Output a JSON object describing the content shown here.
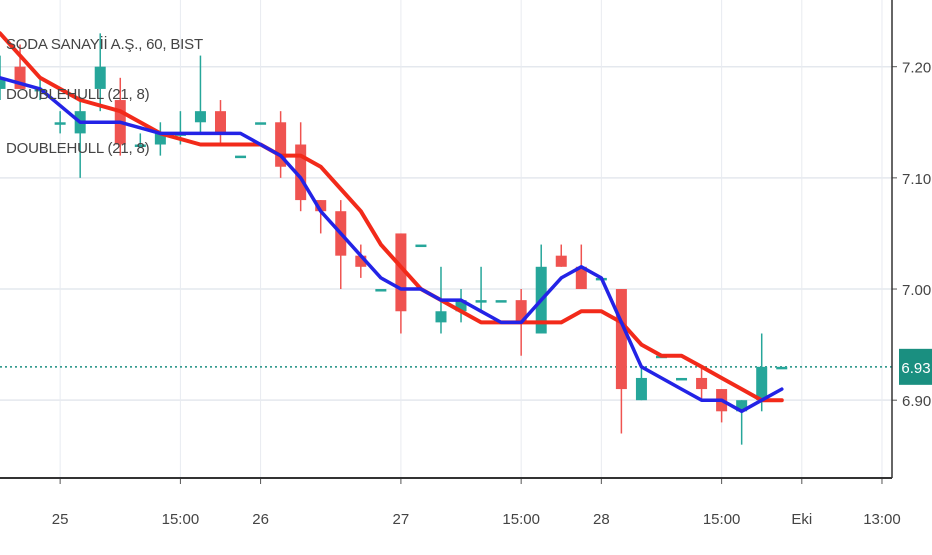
{
  "chart_data": {
    "type": "candlestick",
    "symbol_legend": "SODA SANAYİİ A.Ş., 60, BIST",
    "indicators": [
      {
        "legend": "DOUBLEHULL (21, 8)",
        "color": "#2323e6"
      },
      {
        "legend": "DOUBLEHULL (21, 8)",
        "color": "#f22a1a"
      }
    ],
    "ylim": [
      6.83,
      7.26
    ],
    "y_ticks": [
      "7.20",
      "7.10",
      "7.00",
      "6.90"
    ],
    "y_tick_values": [
      7.2,
      7.1,
      7.0,
      6.9
    ],
    "x_tick_labels": [
      {
        "label": "25",
        "index": 3
      },
      {
        "label": "15:00",
        "index": 9
      },
      {
        "label": "26",
        "index": 13
      },
      {
        "label": "27",
        "index": 20
      },
      {
        "label": "15:00",
        "index": 26
      },
      {
        "label": "28",
        "index": 30
      },
      {
        "label": "15:00",
        "index": 36
      },
      {
        "label": "Eki",
        "index": 40
      },
      {
        "label": "13:00",
        "index": 44
      }
    ],
    "index_range": [
      0,
      44.5
    ],
    "last_price": {
      "label": "6.93",
      "value": 6.93
    },
    "colors": {
      "up": "#26a69a",
      "down": "#ef5350",
      "price_line": "#1a8f80"
    },
    "candles": [
      {
        "i": 0,
        "o": 7.18,
        "h": 7.21,
        "l": 7.17,
        "c": 7.19
      },
      {
        "i": 1,
        "o": 7.2,
        "h": 7.22,
        "l": 7.18,
        "c": 7.18
      },
      {
        "i": 2,
        "o": 7.18,
        "h": 7.19,
        "l": 7.17,
        "c": 7.18
      },
      {
        "i": 3,
        "o": 7.15,
        "h": 7.16,
        "l": 7.14,
        "c": 7.15
      },
      {
        "i": 4,
        "o": 7.14,
        "h": 7.17,
        "l": 7.1,
        "c": 7.16
      },
      {
        "i": 5,
        "o": 7.18,
        "h": 7.23,
        "l": 7.16,
        "c": 7.2
      },
      {
        "i": 6,
        "o": 7.17,
        "h": 7.19,
        "l": 7.12,
        "c": 7.13
      },
      {
        "i": 7,
        "o": 7.13,
        "h": 7.14,
        "l": 7.13,
        "c": 7.13
      },
      {
        "i": 8,
        "o": 7.13,
        "h": 7.15,
        "l": 7.12,
        "c": 7.14
      },
      {
        "i": 9,
        "o": 7.14,
        "h": 7.16,
        "l": 7.13,
        "c": 7.14
      },
      {
        "i": 10,
        "o": 7.15,
        "h": 7.21,
        "l": 7.14,
        "c": 7.16
      },
      {
        "i": 11,
        "o": 7.16,
        "h": 7.17,
        "l": 7.13,
        "c": 7.14
      },
      {
        "i": 12,
        "o": 7.12,
        "h": 7.12,
        "l": 7.12,
        "c": 7.12
      },
      {
        "i": 13,
        "o": 7.15,
        "h": 7.15,
        "l": 7.15,
        "c": 7.15
      },
      {
        "i": 14,
        "o": 7.15,
        "h": 7.16,
        "l": 7.1,
        "c": 7.11
      },
      {
        "i": 15,
        "o": 7.13,
        "h": 7.15,
        "l": 7.07,
        "c": 7.08
      },
      {
        "i": 16,
        "o": 7.08,
        "h": 7.08,
        "l": 7.05,
        "c": 7.07
      },
      {
        "i": 17,
        "o": 7.07,
        "h": 7.08,
        "l": 7.0,
        "c": 7.03
      },
      {
        "i": 18,
        "o": 7.03,
        "h": 7.04,
        "l": 7.01,
        "c": 7.02
      },
      {
        "i": 19,
        "o": 7.0,
        "h": 7.0,
        "l": 7.0,
        "c": 7.0
      },
      {
        "i": 20,
        "o": 7.05,
        "h": 7.05,
        "l": 6.96,
        "c": 6.98
      },
      {
        "i": 21,
        "o": 7.04,
        "h": 7.04,
        "l": 7.04,
        "c": 7.04
      },
      {
        "i": 22,
        "o": 6.97,
        "h": 7.02,
        "l": 6.96,
        "c": 6.98
      },
      {
        "i": 23,
        "o": 6.98,
        "h": 7.0,
        "l": 6.97,
        "c": 6.99
      },
      {
        "i": 24,
        "o": 6.99,
        "h": 7.02,
        "l": 6.98,
        "c": 6.99
      },
      {
        "i": 25,
        "o": 6.99,
        "h": 6.99,
        "l": 6.99,
        "c": 6.99
      },
      {
        "i": 26,
        "o": 6.99,
        "h": 7.0,
        "l": 6.94,
        "c": 6.97
      },
      {
        "i": 27,
        "o": 6.96,
        "h": 7.04,
        "l": 6.96,
        "c": 7.02
      },
      {
        "i": 28,
        "o": 7.03,
        "h": 7.04,
        "l": 7.02,
        "c": 7.02
      },
      {
        "i": 29,
        "o": 7.02,
        "h": 7.04,
        "l": 7.0,
        "c": 7.0
      },
      {
        "i": 30,
        "o": 7.01,
        "h": 7.01,
        "l": 7.01,
        "c": 7.01
      },
      {
        "i": 31,
        "o": 7.0,
        "h": 7.0,
        "l": 6.87,
        "c": 6.91
      },
      {
        "i": 32,
        "o": 6.9,
        "h": 6.93,
        "l": 6.9,
        "c": 6.92
      },
      {
        "i": 33,
        "o": 6.94,
        "h": 6.94,
        "l": 6.94,
        "c": 6.94
      },
      {
        "i": 34,
        "o": 6.92,
        "h": 6.92,
        "l": 6.92,
        "c": 6.92
      },
      {
        "i": 35,
        "o": 6.92,
        "h": 6.93,
        "l": 6.9,
        "c": 6.91
      },
      {
        "i": 36,
        "o": 6.91,
        "h": 6.91,
        "l": 6.88,
        "c": 6.89
      },
      {
        "i": 37,
        "o": 6.89,
        "h": 6.9,
        "l": 6.86,
        "c": 6.9
      },
      {
        "i": 38,
        "o": 6.9,
        "h": 6.96,
        "l": 6.89,
        "c": 6.93
      },
      {
        "i": 39,
        "o": 6.93,
        "h": 6.93,
        "l": 6.93,
        "c": 6.93
      }
    ],
    "hull_blue": [
      [
        0,
        7.19
      ],
      [
        2,
        7.18
      ],
      [
        4,
        7.15
      ],
      [
        6,
        7.15
      ],
      [
        8,
        7.14
      ],
      [
        10,
        7.14
      ],
      [
        12,
        7.14
      ],
      [
        13,
        7.13
      ],
      [
        14,
        7.12
      ],
      [
        15,
        7.1
      ],
      [
        16,
        7.07
      ],
      [
        17,
        7.05
      ],
      [
        18,
        7.03
      ],
      [
        19,
        7.01
      ],
      [
        20,
        7.0
      ],
      [
        21,
        7.0
      ],
      [
        22,
        6.99
      ],
      [
        23,
        6.99
      ],
      [
        24,
        6.98
      ],
      [
        25,
        6.97
      ],
      [
        26,
        6.97
      ],
      [
        27,
        6.99
      ],
      [
        28,
        7.01
      ],
      [
        29,
        7.02
      ],
      [
        30,
        7.01
      ],
      [
        31,
        6.97
      ],
      [
        32,
        6.93
      ],
      [
        33,
        6.92
      ],
      [
        34,
        6.91
      ],
      [
        35,
        6.9
      ],
      [
        36,
        6.9
      ],
      [
        37,
        6.89
      ],
      [
        38,
        6.9
      ],
      [
        39,
        6.91
      ]
    ],
    "hull_red": [
      [
        0,
        7.23
      ],
      [
        2,
        7.19
      ],
      [
        4,
        7.17
      ],
      [
        6,
        7.16
      ],
      [
        8,
        7.14
      ],
      [
        10,
        7.13
      ],
      [
        12,
        7.13
      ],
      [
        13,
        7.13
      ],
      [
        14,
        7.12
      ],
      [
        15,
        7.12
      ],
      [
        16,
        7.11
      ],
      [
        17,
        7.09
      ],
      [
        18,
        7.07
      ],
      [
        19,
        7.04
      ],
      [
        20,
        7.02
      ],
      [
        21,
        7.0
      ],
      [
        22,
        6.99
      ],
      [
        23,
        6.98
      ],
      [
        24,
        6.97
      ],
      [
        25,
        6.97
      ],
      [
        26,
        6.97
      ],
      [
        27,
        6.97
      ],
      [
        28,
        6.97
      ],
      [
        29,
        6.98
      ],
      [
        30,
        6.98
      ],
      [
        31,
        6.97
      ],
      [
        32,
        6.95
      ],
      [
        33,
        6.94
      ],
      [
        34,
        6.94
      ],
      [
        35,
        6.93
      ],
      [
        36,
        6.92
      ],
      [
        37,
        6.91
      ],
      [
        38,
        6.9
      ],
      [
        39,
        6.9
      ]
    ]
  }
}
